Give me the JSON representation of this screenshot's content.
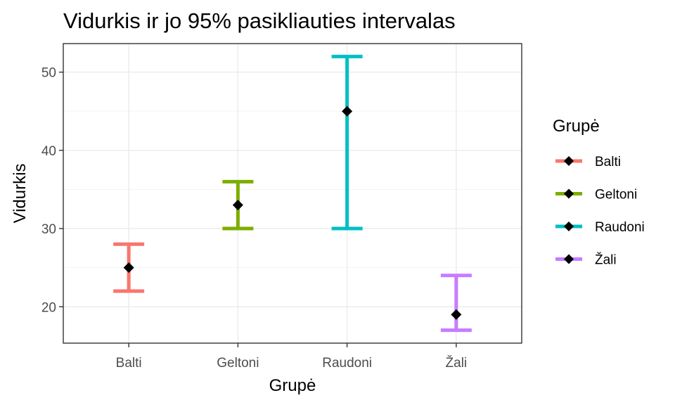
{
  "chart_data": {
    "type": "errorbar",
    "title": "Vidurkis ir jo 95% pasikliauties intervalas",
    "xlabel": "Grupė",
    "ylabel": "Vidurkis",
    "categories": [
      "Balti",
      "Geltoni",
      "Raudoni",
      "Žali"
    ],
    "series": [
      {
        "name": "Balti",
        "mean": 25,
        "lower": 22,
        "upper": 28,
        "color": "#F8766D"
      },
      {
        "name": "Geltoni",
        "mean": 33,
        "lower": 30,
        "upper": 36,
        "color": "#7CAE00"
      },
      {
        "name": "Raudoni",
        "mean": 45,
        "lower": 30,
        "upper": 52,
        "color": "#00BFC4"
      },
      {
        "name": "Žali",
        "mean": 19,
        "lower": 17,
        "upper": 24,
        "color": "#C77CFF"
      }
    ],
    "ylim": [
      15.35,
      53.65
    ],
    "yticks": [
      20,
      30,
      40,
      50
    ],
    "grid": true,
    "legend": {
      "title": "Grupė",
      "position": "right"
    },
    "point_marker": "diamond",
    "point_color": "#000000"
  }
}
